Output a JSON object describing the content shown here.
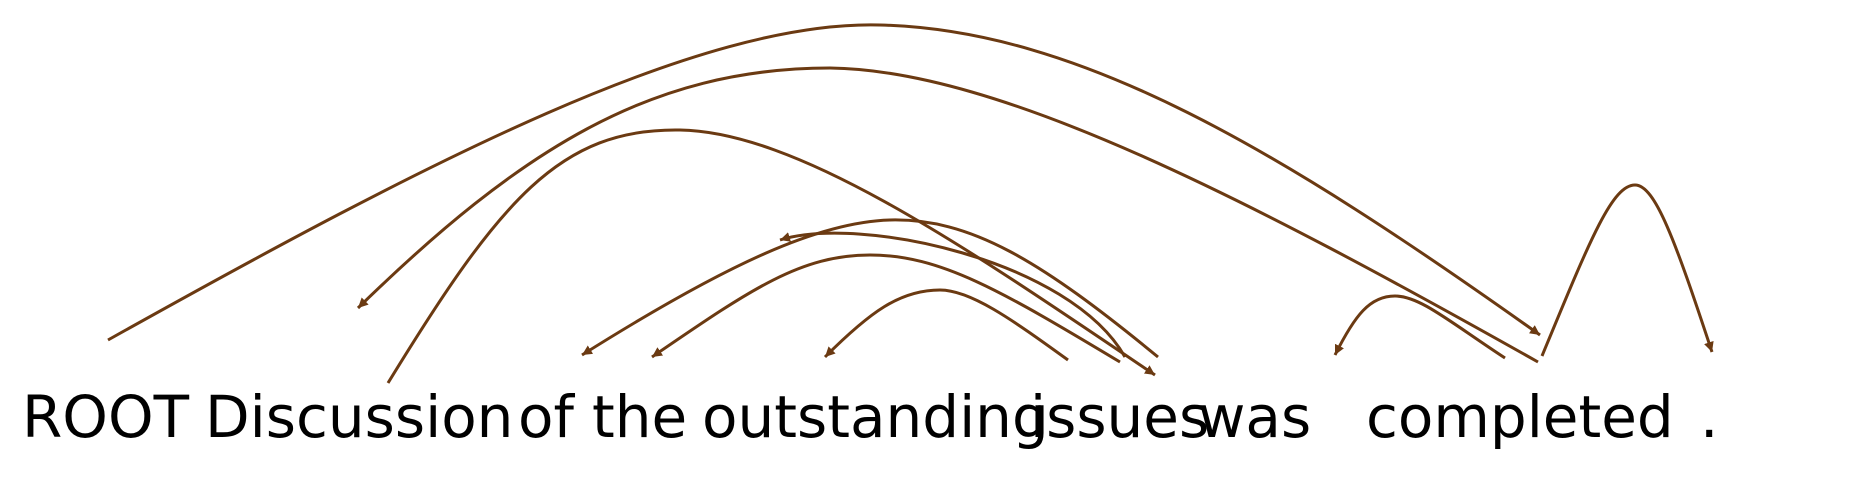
{
  "diagram": {
    "arc_color": "#6b3a12",
    "tokens": [
      "ROOT",
      "Discussion",
      "of",
      "the",
      "outstanding",
      "issues",
      "was",
      "completed",
      "."
    ],
    "arcs": [
      {
        "from": "ROOT",
        "to": "completed"
      },
      {
        "from": "completed",
        "to": "Discussion"
      },
      {
        "from": "Discussion",
        "to": "issues"
      },
      {
        "from": "issues",
        "to": "of"
      },
      {
        "from": "issues",
        "to": "the"
      },
      {
        "from": "issues",
        "to": "outstanding"
      },
      {
        "from": "outstanding",
        "to": "issues"
      },
      {
        "from": "completed",
        "to": "was"
      },
      {
        "from": "completed",
        "to": "."
      }
    ]
  }
}
